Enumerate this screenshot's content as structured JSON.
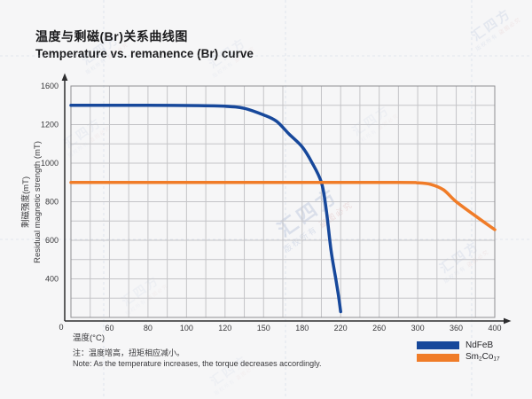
{
  "title": {
    "zh": "温度与剩磁(Br)关系曲线图",
    "en": "Temperature vs. remanence (Br) curve"
  },
  "y_axis_title": {
    "zh": "剩磁强度(mT)",
    "en": "Residual magnetic strength (mT)"
  },
  "x_axis_title": "温度(°C)",
  "origin_label": "0",
  "note": {
    "zh": "注：温度增高，扭矩相应减小。",
    "en": "Note: As the temperature increases, the torque decreases accordingly."
  },
  "legend": {
    "items": [
      {
        "name": "NdFeB",
        "color": "#17489b",
        "label_parts": [
          {
            "t": "NdFeB"
          }
        ]
      },
      {
        "name": "Sm2Co17",
        "color": "#f07c28",
        "label_parts": [
          {
            "t": "Sm"
          },
          {
            "t": "2",
            "sub": true
          },
          {
            "t": "Co"
          },
          {
            "t": "17",
            "sub": true
          }
        ]
      }
    ]
  },
  "watermark": {
    "brand": "汇四方",
    "line2a": "版权所有",
    "line2b": "盗图必究"
  },
  "chart_data": {
    "type": "line",
    "title": "Temperature vs. remanence (Br) curve",
    "title_zh": "温度与剩磁(Br)关系曲线图",
    "xlabel": "温度(°C)",
    "ylabel": "Residual magnetic strength (mT) / 剩磁强度(mT)",
    "grid": true,
    "legend_position": "bottom-right",
    "x_ticks": [
      0,
      60,
      80,
      100,
      120,
      150,
      180,
      220,
      260,
      300,
      360,
      400
    ],
    "y_ticks": [
      1600,
      1200,
      1000,
      800,
      600,
      400,
      0
    ],
    "axis_note": "Printed tick values are non-linear; ticks are evenly spaced on the plot with one unlabeled gridline between each labeled pair.",
    "series": [
      {
        "name": "NdFeB",
        "color": "#17489b",
        "points": [
          [
            0,
            1400
          ],
          [
            40,
            1400
          ],
          [
            80,
            1400
          ],
          [
            100,
            1398
          ],
          [
            120,
            1390
          ],
          [
            135,
            1368
          ],
          [
            150,
            1300
          ],
          [
            160,
            1235
          ],
          [
            170,
            1150
          ],
          [
            180,
            1085
          ],
          [
            190,
            1005
          ],
          [
            200,
            900
          ],
          [
            205,
            760
          ],
          [
            210,
            550
          ],
          [
            215,
            395
          ],
          [
            218,
            210
          ],
          [
            220,
            60
          ]
        ]
      },
      {
        "name": "Sm2Co17",
        "color": "#f07c28",
        "points": [
          [
            0,
            900
          ],
          [
            150,
            900
          ],
          [
            280,
            900
          ],
          [
            300,
            898
          ],
          [
            320,
            890
          ],
          [
            340,
            862
          ],
          [
            360,
            800
          ],
          [
            380,
            726
          ],
          [
            400,
            655
          ]
        ]
      }
    ]
  }
}
